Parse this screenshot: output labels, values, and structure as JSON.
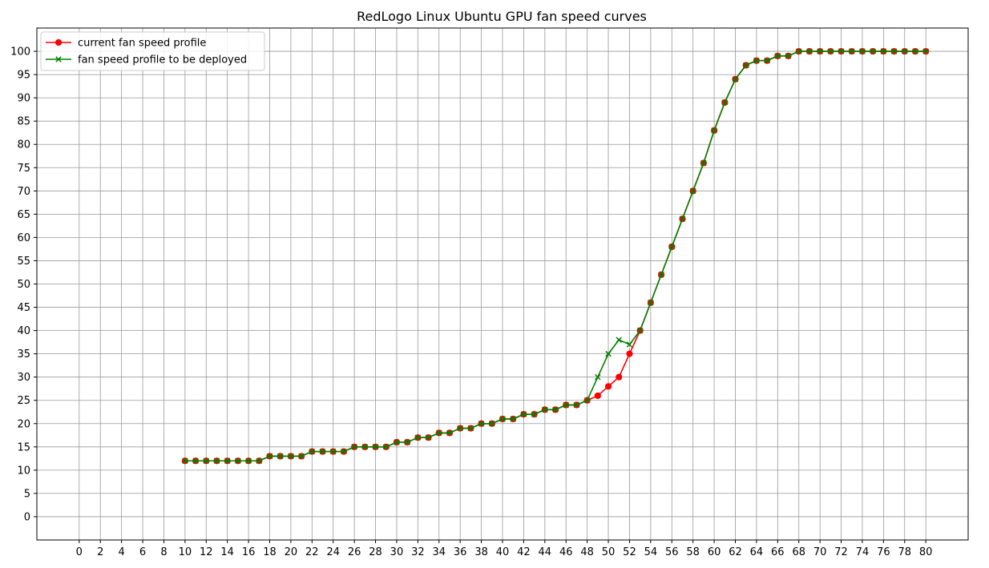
{
  "chart_data": {
    "type": "line",
    "title": "RedLogo Linux Ubuntu GPU fan speed curves",
    "xlabel": "",
    "ylabel": "",
    "xlim": [
      -4,
      84
    ],
    "ylim": [
      -5,
      105
    ],
    "x_ticks": [
      0,
      2,
      4,
      6,
      8,
      10,
      12,
      14,
      16,
      18,
      20,
      22,
      24,
      26,
      28,
      30,
      32,
      34,
      36,
      38,
      40,
      42,
      44,
      46,
      48,
      50,
      52,
      54,
      56,
      58,
      60,
      62,
      64,
      66,
      68,
      70,
      72,
      74,
      76,
      78,
      80
    ],
    "y_ticks": [
      0,
      5,
      10,
      15,
      20,
      25,
      30,
      35,
      40,
      45,
      50,
      55,
      60,
      65,
      70,
      75,
      80,
      85,
      90,
      95,
      100
    ],
    "grid": true,
    "legend_position": "top-left",
    "x": [
      10,
      11,
      12,
      13,
      14,
      15,
      16,
      17,
      18,
      19,
      20,
      21,
      22,
      23,
      24,
      25,
      26,
      27,
      28,
      29,
      30,
      31,
      32,
      33,
      34,
      35,
      36,
      37,
      38,
      39,
      40,
      41,
      42,
      43,
      44,
      45,
      46,
      47,
      48,
      49,
      50,
      51,
      52,
      53,
      54,
      55,
      56,
      57,
      58,
      59,
      60,
      61,
      62,
      63,
      64,
      65,
      66,
      67,
      68,
      69,
      70,
      71,
      72,
      73,
      74,
      75,
      76,
      77,
      78,
      79,
      80
    ],
    "series": [
      {
        "name": "current fan speed profile",
        "color": "#ff0000",
        "marker": "circle",
        "values": [
          12,
          12,
          12,
          12,
          12,
          12,
          12,
          12,
          13,
          13,
          13,
          13,
          14,
          14,
          14,
          14,
          15,
          15,
          15,
          15,
          16,
          16,
          17,
          17,
          18,
          18,
          19,
          19,
          20,
          20,
          21,
          21,
          22,
          22,
          23,
          23,
          24,
          24,
          25,
          26,
          28,
          30,
          35,
          40,
          46,
          52,
          58,
          64,
          70,
          76,
          83,
          89,
          94,
          97,
          98,
          98,
          99,
          99,
          100,
          100,
          100,
          100,
          100,
          100,
          100,
          100,
          100,
          100,
          100,
          100,
          100
        ]
      },
      {
        "name": "fan speed profile to be deployed",
        "color": "#008000",
        "marker": "x",
        "values": [
          12,
          12,
          12,
          12,
          12,
          12,
          12,
          12,
          13,
          13,
          13,
          13,
          14,
          14,
          14,
          14,
          15,
          15,
          15,
          15,
          16,
          16,
          17,
          17,
          18,
          18,
          19,
          19,
          20,
          20,
          21,
          21,
          22,
          22,
          23,
          23,
          24,
          24,
          25,
          30,
          35,
          38,
          37,
          40,
          46,
          52,
          58,
          64,
          70,
          76,
          83,
          89,
          94,
          97,
          98,
          98,
          99,
          99,
          100,
          100,
          100,
          100,
          100,
          100,
          100,
          100,
          100,
          100,
          100,
          100,
          100
        ]
      }
    ]
  }
}
